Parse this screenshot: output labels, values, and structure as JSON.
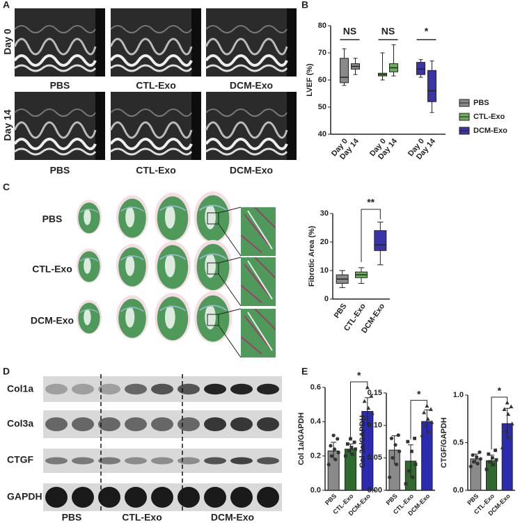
{
  "panel_labels": [
    "A",
    "B",
    "C",
    "D",
    "E"
  ],
  "panel_a": {
    "row_labels": [
      "Day 0",
      "Day 14"
    ],
    "column_labels": [
      "PBS",
      "CTL-Exo",
      "DCM-Exo"
    ]
  },
  "panel_c": {
    "row_labels": [
      "PBS",
      "CTL-Exo",
      "DCM-Exo"
    ]
  },
  "panel_d": {
    "band_labels": [
      "Col1a",
      "Col3a",
      "CTGF",
      "GAPDH"
    ],
    "group_labels": [
      "PBS",
      "CTL-Exo",
      "DCM-Exo"
    ]
  },
  "chart_data": [
    {
      "type": "grouped-box",
      "y_label": "LVEF (%)",
      "categories": [
        "Day 0",
        "Day 14"
      ],
      "ylim": [
        40,
        80
      ],
      "yticks": [
        40,
        50,
        60,
        70,
        80
      ],
      "legend": "right",
      "annotations": [
        "NS",
        "NS",
        "*"
      ],
      "series": [
        {
          "name": "PBS",
          "color": "#8a8a8a",
          "boxes": [
            {
              "min": 58,
              "q1": 59,
              "median": 61,
              "q3": 68,
              "max": 71.5
            },
            {
              "min": 62,
              "q1": 64,
              "median": 65,
              "q3": 66,
              "max": 68
            }
          ]
        },
        {
          "name": "CTL-Exo",
          "color": "#6cae5c",
          "boxes": [
            {
              "min": 60,
              "q1": 61.5,
              "median": 62,
              "q3": 62.5,
              "max": 70
            },
            {
              "min": 61.5,
              "q1": 63,
              "median": 64.5,
              "q3": 66,
              "max": 73
            }
          ]
        },
        {
          "name": "DCM-Exo",
          "color": "#3b34a8",
          "boxes": [
            {
              "min": 61,
              "q1": 62,
              "median": 64,
              "q3": 66.5,
              "max": 67.5
            },
            {
              "min": 48,
              "q1": 52,
              "median": 56,
              "q3": 63.5,
              "max": 67
            }
          ]
        }
      ]
    },
    {
      "type": "box",
      "y_label": "Fibrotic Area (%)",
      "categories": [
        "PBS",
        "CTL-Exo",
        "DCM-Exo"
      ],
      "colors": [
        "#8a8a8a",
        "#6cae5c",
        "#3b34a8"
      ],
      "ylim": [
        0,
        30
      ],
      "yticks": [
        0,
        10,
        20,
        30
      ],
      "annotation": "**",
      "boxes": [
        {
          "min": 4,
          "q1": 5.5,
          "median": 7,
          "q3": 8.5,
          "max": 10
        },
        {
          "min": 5.5,
          "q1": 7.5,
          "median": 8.5,
          "q3": 9.5,
          "max": 11
        },
        {
          "min": 12,
          "q1": 17,
          "median": 19,
          "q3": 24,
          "max": 27
        }
      ]
    },
    {
      "type": "bar",
      "y_label": "Col 1a/GAPDH",
      "categories": [
        "PBS",
        "CTL-Exo",
        "DCM-Exo"
      ],
      "colors": [
        "#8a8a8a",
        "#2f6a2f",
        "#2b2bb0"
      ],
      "markers": [
        "circle",
        "square",
        "triangle"
      ],
      "ylim": [
        0,
        0.6
      ],
      "yticks": [
        {
          "value": 0,
          "label": "0.0"
        },
        0.2,
        0.4,
        0.6
      ],
      "annotation": "*",
      "values": [
        0.23,
        0.24,
        0.46
      ],
      "errors": [
        0.05,
        0.03,
        0.08
      ],
      "points": [
        [
          0.15,
          0.18,
          0.2,
          0.22,
          0.24,
          0.26,
          0.3,
          0.32
        ],
        [
          0.2,
          0.21,
          0.23,
          0.24,
          0.25,
          0.27,
          0.28,
          0.3
        ],
        [
          0.33,
          0.38,
          0.42,
          0.45,
          0.48,
          0.52,
          0.55,
          0.6
        ]
      ]
    },
    {
      "type": "bar",
      "y_label": "Col 3a/GAPDH",
      "categories": [
        "PBS",
        "CTL-Exo",
        "DCM-Exo"
      ],
      "colors": [
        "#8a8a8a",
        "#2f6a2f",
        "#2b2bb0"
      ],
      "markers": [
        "circle",
        "square",
        "triangle"
      ],
      "ylim": [
        0,
        0.15
      ],
      "yticks": [
        {
          "value": 0,
          "label": "0.00"
        },
        0.05,
        {
          "value": 0.1,
          "label": "0.10"
        },
        0.15
      ],
      "annotation": "*",
      "values": [
        0.062,
        0.045,
        0.106
      ],
      "errors": [
        0.022,
        0.025,
        0.018
      ],
      "points": [
        [
          0.02,
          0.04,
          0.05,
          0.06,
          0.07,
          0.08,
          0.085
        ],
        [
          0.01,
          0.02,
          0.03,
          0.04,
          0.06,
          0.075,
          0.08
        ],
        [
          0.085,
          0.09,
          0.1,
          0.105,
          0.11,
          0.12,
          0.125,
          0.13
        ]
      ]
    },
    {
      "type": "bar",
      "y_label": "CTGF/GAPDH",
      "categories": [
        "PBS",
        "CTL-Exo",
        "DCM-Exo"
      ],
      "colors": [
        "#8a8a8a",
        "#2f6a2f",
        "#2b2bb0"
      ],
      "markers": [
        "circle",
        "square",
        "triangle"
      ],
      "ylim": [
        0,
        1
      ],
      "yticks": [
        {
          "value": 0,
          "label": "0.0"
        },
        0.5,
        {
          "value": 1,
          "label": "1.0"
        }
      ],
      "annotation": "*",
      "values": [
        0.33,
        0.31,
        0.7
      ],
      "errors": [
        0.05,
        0.06,
        0.16
      ],
      "points": [
        [
          0.25,
          0.28,
          0.3,
          0.33,
          0.35,
          0.37,
          0.4
        ],
        [
          0.22,
          0.27,
          0.3,
          0.32,
          0.34,
          0.38,
          0.42
        ],
        [
          0.45,
          0.55,
          0.62,
          0.7,
          0.8,
          0.85,
          0.88,
          0.92
        ]
      ]
    }
  ]
}
